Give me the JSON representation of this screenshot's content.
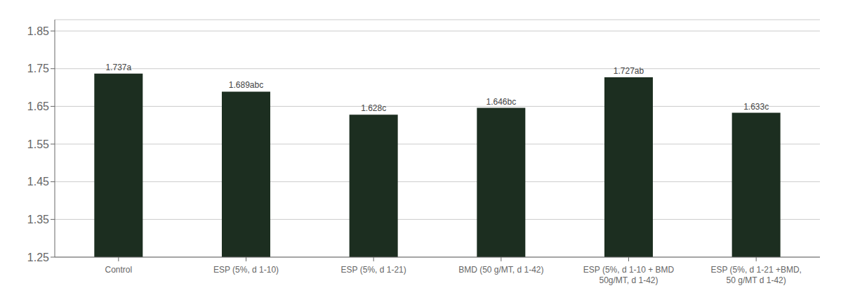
{
  "chart_data": {
    "type": "bar",
    "categories": [
      "Control",
      "ESP (5%, d 1-10)",
      "ESP (5%, d 1-21)",
      "BMD (50 g/MT, d 1-42)",
      "ESP (5%, d 1-10 + BMD\n50g/MT, d 1-42)",
      "ESP (5%, d 1-21 +BMD,\n50 g/MT d 1-42)"
    ],
    "values": [
      1.737,
      1.689,
      1.628,
      1.646,
      1.727,
      1.633
    ],
    "value_labels": [
      "1.737a",
      "1.689abc",
      "1.628c",
      "1.646bc",
      "1.727ab",
      "1.633c"
    ],
    "data_labels": true,
    "color": "#1c2e20",
    "ylim": [
      1.25,
      1.88
    ],
    "yticks": [
      1.25,
      1.35,
      1.45,
      1.55,
      1.65,
      1.75,
      1.85
    ],
    "grid": true
  }
}
